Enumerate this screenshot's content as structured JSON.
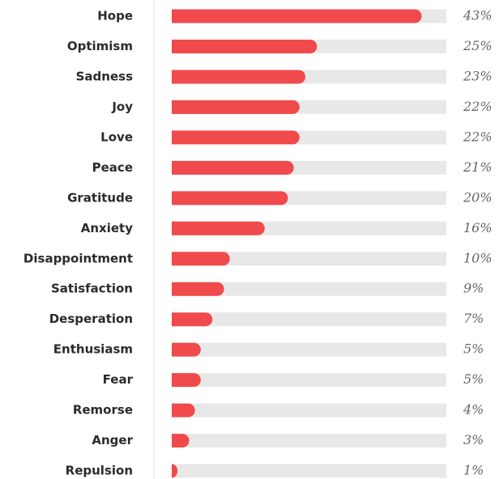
{
  "chart_data": {
    "type": "bar",
    "orientation": "horizontal",
    "categories": [
      "Hope",
      "Optimism",
      "Sadness",
      "Joy",
      "Love",
      "Peace",
      "Gratitude",
      "Anxiety",
      "Disappointment",
      "Satisfaction",
      "Desperation",
      "Enthusiasm",
      "Fear",
      "Remorse",
      "Anger",
      "Repulsion"
    ],
    "values": [
      43,
      25,
      23,
      22,
      22,
      21,
      20,
      16,
      10,
      9,
      7,
      5,
      5,
      4,
      3,
      1
    ],
    "value_labels": [
      "43%",
      "25%",
      "23%",
      "22%",
      "22%",
      "21%",
      "20%",
      "16%",
      "10%",
      "9%",
      "7%",
      "5%",
      "5%",
      "4%",
      "3%",
      "1%"
    ],
    "color": "#f04a4c",
    "track_color": "#e8e8e8"
  }
}
